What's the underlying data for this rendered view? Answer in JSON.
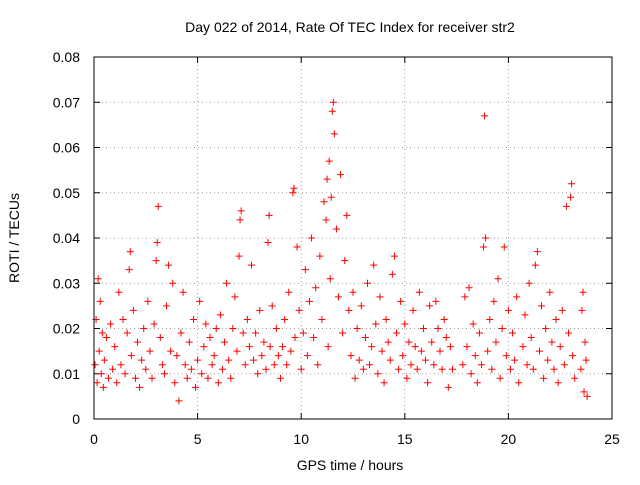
{
  "chart_data": {
    "type": "scatter",
    "title": "Day 022 of 2014, Rate Of TEC Index for receiver str2",
    "xlabel": "GPS time / hours",
    "ylabel": "ROTI / TECUs",
    "xlim": [
      0,
      25
    ],
    "ylim": [
      0,
      0.08
    ],
    "x_ticks": [
      0,
      5,
      10,
      15,
      20,
      25
    ],
    "x_tick_labels": [
      "0",
      "5",
      "10",
      "15",
      "20",
      "25"
    ],
    "y_ticks": [
      0,
      0.01,
      0.02,
      0.03,
      0.04,
      0.05,
      0.06,
      0.07,
      0.08
    ],
    "y_tick_labels": [
      "0",
      "0.01",
      "0.02",
      "0.03",
      "0.04",
      "0.05",
      "0.06",
      "0.07",
      "0.08"
    ],
    "grid": true,
    "marker": "+",
    "series_color": "#ff0000",
    "series": [
      {
        "name": "ROTI",
        "points": [
          [
            0.05,
            0.012
          ],
          [
            0.1,
            0.022
          ],
          [
            0.15,
            0.008
          ],
          [
            0.2,
            0.031
          ],
          [
            0.25,
            0.015
          ],
          [
            0.3,
            0.026
          ],
          [
            0.35,
            0.01
          ],
          [
            0.4,
            0.019
          ],
          [
            0.45,
            0.007
          ],
          [
            0.5,
            0.013
          ],
          [
            0.6,
            0.018
          ],
          [
            0.7,
            0.009
          ],
          [
            0.8,
            0.021
          ],
          [
            0.9,
            0.011
          ],
          [
            1.0,
            0.016
          ],
          [
            1.1,
            0.008
          ],
          [
            1.2,
            0.028
          ],
          [
            1.3,
            0.012
          ],
          [
            1.4,
            0.022
          ],
          [
            1.5,
            0.01
          ],
          [
            1.6,
            0.019
          ],
          [
            1.7,
            0.033
          ],
          [
            1.75,
            0.037
          ],
          [
            1.8,
            0.014
          ],
          [
            1.9,
            0.024
          ],
          [
            2.0,
            0.009
          ],
          [
            2.1,
            0.017
          ],
          [
            2.2,
            0.007
          ],
          [
            2.3,
            0.013
          ],
          [
            2.4,
            0.02
          ],
          [
            2.5,
            0.011
          ],
          [
            2.6,
            0.026
          ],
          [
            2.7,
            0.015
          ],
          [
            2.8,
            0.009
          ],
          [
            2.9,
            0.021
          ],
          [
            3.0,
            0.035
          ],
          [
            3.05,
            0.039
          ],
          [
            3.1,
            0.047
          ],
          [
            3.2,
            0.018
          ],
          [
            3.3,
            0.012
          ],
          [
            3.4,
            0.01
          ],
          [
            3.5,
            0.025
          ],
          [
            3.6,
            0.034
          ],
          [
            3.7,
            0.015
          ],
          [
            3.8,
            0.03
          ],
          [
            3.9,
            0.008
          ],
          [
            4.0,
            0.014
          ],
          [
            4.1,
            0.004
          ],
          [
            4.2,
            0.019
          ],
          [
            4.3,
            0.028
          ],
          [
            4.4,
            0.012
          ],
          [
            4.5,
            0.009
          ],
          [
            4.6,
            0.017
          ],
          [
            4.7,
            0.011
          ],
          [
            4.8,
            0.022
          ],
          [
            4.9,
            0.007
          ],
          [
            5.0,
            0.013
          ],
          [
            5.1,
            0.026
          ],
          [
            5.2,
            0.01
          ],
          [
            5.3,
            0.016
          ],
          [
            5.4,
            0.021
          ],
          [
            5.5,
            0.009
          ],
          [
            5.6,
            0.018
          ],
          [
            5.7,
            0.012
          ],
          [
            5.8,
            0.014
          ],
          [
            5.9,
            0.02
          ],
          [
            6.0,
            0.008
          ],
          [
            6.1,
            0.023
          ],
          [
            6.2,
            0.011
          ],
          [
            6.3,
            0.017
          ],
          [
            6.4,
            0.03
          ],
          [
            6.5,
            0.013
          ],
          [
            6.6,
            0.009
          ],
          [
            6.7,
            0.02
          ],
          [
            6.8,
            0.027
          ],
          [
            6.9,
            0.015
          ],
          [
            7.0,
            0.036
          ],
          [
            7.05,
            0.044
          ],
          [
            7.1,
            0.046
          ],
          [
            7.2,
            0.019
          ],
          [
            7.3,
            0.012
          ],
          [
            7.4,
            0.022
          ],
          [
            7.5,
            0.016
          ],
          [
            7.6,
            0.034
          ],
          [
            7.7,
            0.013
          ],
          [
            7.8,
            0.019
          ],
          [
            7.9,
            0.01
          ],
          [
            8.0,
            0.024
          ],
          [
            8.1,
            0.014
          ],
          [
            8.2,
            0.017
          ],
          [
            8.3,
            0.011
          ],
          [
            8.4,
            0.039
          ],
          [
            8.45,
            0.045
          ],
          [
            8.5,
            0.016
          ],
          [
            8.6,
            0.025
          ],
          [
            8.7,
            0.012
          ],
          [
            8.8,
            0.02
          ],
          [
            8.9,
            0.014
          ],
          [
            9.0,
            0.009
          ],
          [
            9.1,
            0.016
          ],
          [
            9.2,
            0.022
          ],
          [
            9.3,
            0.012
          ],
          [
            9.4,
            0.028
          ],
          [
            9.5,
            0.015
          ],
          [
            9.6,
            0.05
          ],
          [
            9.65,
            0.051
          ],
          [
            9.7,
            0.018
          ],
          [
            9.8,
            0.038
          ],
          [
            9.9,
            0.024
          ],
          [
            10.0,
            0.011
          ],
          [
            10.1,
            0.019
          ],
          [
            10.2,
            0.033
          ],
          [
            10.3,
            0.014
          ],
          [
            10.4,
            0.026
          ],
          [
            10.5,
            0.04
          ],
          [
            10.6,
            0.018
          ],
          [
            10.7,
            0.029
          ],
          [
            10.8,
            0.012
          ],
          [
            10.9,
            0.036
          ],
          [
            11.0,
            0.022
          ],
          [
            11.1,
            0.048
          ],
          [
            11.2,
            0.044
          ],
          [
            11.25,
            0.053
          ],
          [
            11.3,
            0.016
          ],
          [
            11.35,
            0.057
          ],
          [
            11.4,
            0.031
          ],
          [
            11.45,
            0.049
          ],
          [
            11.5,
            0.068
          ],
          [
            11.55,
            0.07
          ],
          [
            11.6,
            0.063
          ],
          [
            11.7,
            0.042
          ],
          [
            11.8,
            0.027
          ],
          [
            11.9,
            0.054
          ],
          [
            12.0,
            0.019
          ],
          [
            12.1,
            0.035
          ],
          [
            12.2,
            0.045
          ],
          [
            12.3,
            0.024
          ],
          [
            12.4,
            0.014
          ],
          [
            12.5,
            0.028
          ],
          [
            12.6,
            0.009
          ],
          [
            12.7,
            0.02
          ],
          [
            12.8,
            0.013
          ],
          [
            12.9,
            0.025
          ],
          [
            13.0,
            0.011
          ],
          [
            13.1,
            0.018
          ],
          [
            13.2,
            0.03
          ],
          [
            13.3,
            0.012
          ],
          [
            13.4,
            0.016
          ],
          [
            13.5,
            0.034
          ],
          [
            13.6,
            0.021
          ],
          [
            13.7,
            0.01
          ],
          [
            13.8,
            0.027
          ],
          [
            13.9,
            0.015
          ],
          [
            14.0,
            0.008
          ],
          [
            14.1,
            0.022
          ],
          [
            14.2,
            0.017
          ],
          [
            14.3,
            0.013
          ],
          [
            14.4,
            0.032
          ],
          [
            14.5,
            0.036
          ],
          [
            14.6,
            0.019
          ],
          [
            14.7,
            0.011
          ],
          [
            14.8,
            0.026
          ],
          [
            14.9,
            0.014
          ],
          [
            15.0,
            0.021
          ],
          [
            15.1,
            0.009
          ],
          [
            15.2,
            0.017
          ],
          [
            15.3,
            0.012
          ],
          [
            15.4,
            0.024
          ],
          [
            15.5,
            0.016
          ],
          [
            15.6,
            0.011
          ],
          [
            15.7,
            0.028
          ],
          [
            15.8,
            0.015
          ],
          [
            15.9,
            0.02
          ],
          [
            16.0,
            0.013
          ],
          [
            16.1,
            0.008
          ],
          [
            16.2,
            0.025
          ],
          [
            16.3,
            0.017
          ],
          [
            16.4,
            0.012
          ],
          [
            16.5,
            0.026
          ],
          [
            16.6,
            0.02
          ],
          [
            16.7,
            0.015
          ],
          [
            16.8,
            0.011
          ],
          [
            16.9,
            0.022
          ],
          [
            17.0,
            0.018
          ],
          [
            17.1,
            0.007
          ],
          [
            17.2,
            0.016
          ],
          [
            17.3,
            0.011
          ],
          [
            17.8,
            0.012
          ],
          [
            17.9,
            0.027
          ],
          [
            18.0,
            0.016
          ],
          [
            18.1,
            0.029
          ],
          [
            18.2,
            0.01
          ],
          [
            18.3,
            0.021
          ],
          [
            18.4,
            0.014
          ],
          [
            18.5,
            0.008
          ],
          [
            18.6,
            0.019
          ],
          [
            18.7,
            0.012
          ],
          [
            18.8,
            0.038
          ],
          [
            18.85,
            0.067
          ],
          [
            18.9,
            0.04
          ],
          [
            19.0,
            0.015
          ],
          [
            19.1,
            0.022
          ],
          [
            19.2,
            0.011
          ],
          [
            19.3,
            0.026
          ],
          [
            19.4,
            0.017
          ],
          [
            19.5,
            0.031
          ],
          [
            19.6,
            0.009
          ],
          [
            19.7,
            0.02
          ],
          [
            19.8,
            0.038
          ],
          [
            19.9,
            0.014
          ],
          [
            20.0,
            0.024
          ],
          [
            20.1,
            0.011
          ],
          [
            20.2,
            0.019
          ],
          [
            20.3,
            0.013
          ],
          [
            20.4,
            0.027
          ],
          [
            20.5,
            0.008
          ],
          [
            20.7,
            0.016
          ],
          [
            20.8,
            0.023
          ],
          [
            20.9,
            0.012
          ],
          [
            21.0,
            0.03
          ],
          [
            21.1,
            0.018
          ],
          [
            21.2,
            0.011
          ],
          [
            21.3,
            0.034
          ],
          [
            21.4,
            0.037
          ],
          [
            21.5,
            0.015
          ],
          [
            21.6,
            0.025
          ],
          [
            21.7,
            0.009
          ],
          [
            21.8,
            0.02
          ],
          [
            21.9,
            0.013
          ],
          [
            22.0,
            0.028
          ],
          [
            22.1,
            0.017
          ],
          [
            22.2,
            0.011
          ],
          [
            22.3,
            0.022
          ],
          [
            22.4,
            0.008
          ],
          [
            22.5,
            0.016
          ],
          [
            22.6,
            0.024
          ],
          [
            22.7,
            0.012
          ],
          [
            22.8,
            0.047
          ],
          [
            22.9,
            0.019
          ],
          [
            23.0,
            0.049
          ],
          [
            23.05,
            0.052
          ],
          [
            23.1,
            0.014
          ],
          [
            23.2,
            0.009
          ],
          [
            23.5,
            0.011
          ],
          [
            23.55,
            0.024
          ],
          [
            23.6,
            0.028
          ],
          [
            23.65,
            0.006
          ],
          [
            23.7,
            0.017
          ],
          [
            23.75,
            0.013
          ],
          [
            23.8,
            0.005
          ]
        ]
      }
    ]
  }
}
